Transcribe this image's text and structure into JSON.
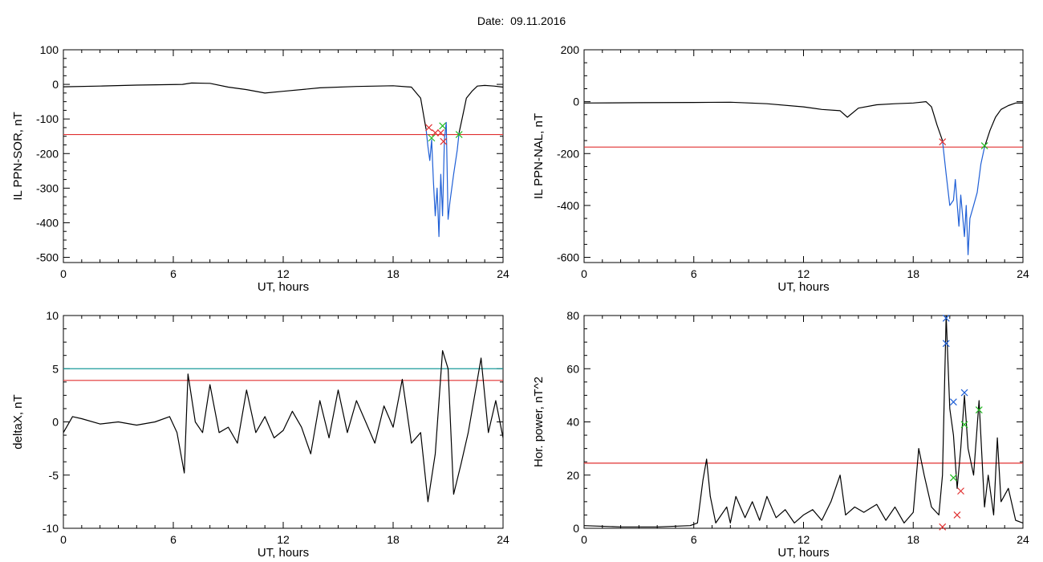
{
  "header": {
    "date_label": "Date:",
    "date_value": "09.11.2016"
  },
  "chart_data": [
    {
      "id": "sor",
      "type": "line",
      "xlabel": "UT, hours",
      "ylabel": "IL PPN-SOR, nT",
      "xlim": [
        0,
        24
      ],
      "ylim": [
        -515,
        100
      ],
      "xticks": [
        0,
        6,
        12,
        18,
        24
      ],
      "yticks": [
        100,
        0,
        -100,
        -200,
        -300,
        -400,
        -500
      ],
      "thresholds": [
        {
          "value": -145,
          "color": "#e03030"
        }
      ],
      "series": [
        {
          "color": "#000000",
          "points": [
            [
              0,
              -7
            ],
            [
              2,
              -5
            ],
            [
              4,
              -2
            ],
            [
              6.5,
              0
            ],
            [
              7,
              4
            ],
            [
              8,
              3
            ],
            [
              9,
              -8
            ],
            [
              10,
              -15
            ],
            [
              11,
              -25
            ],
            [
              12,
              -20
            ],
            [
              14,
              -10
            ],
            [
              16,
              -6
            ],
            [
              18,
              -4
            ],
            [
              19,
              -8
            ],
            [
              19.5,
              -40
            ],
            [
              19.7,
              -100
            ],
            [
              19.8,
              -130
            ]
          ]
        },
        {
          "color": "#1f5fd6",
          "points": [
            [
              19.8,
              -130
            ],
            [
              19.9,
              -180
            ],
            [
              20.0,
              -220
            ],
            [
              20.1,
              -160
            ],
            [
              20.2,
              -280
            ],
            [
              20.3,
              -380
            ],
            [
              20.4,
              -300
            ],
            [
              20.5,
              -440
            ],
            [
              20.6,
              -260
            ],
            [
              20.7,
              -380
            ],
            [
              20.8,
              -160
            ],
            [
              20.9,
              -110
            ],
            [
              21.0,
              -390
            ],
            [
              21.1,
              -340
            ],
            [
              21.3,
              -260
            ],
            [
              21.5,
              -190
            ],
            [
              21.6,
              -140
            ]
          ]
        },
        {
          "color": "#000000",
          "points": [
            [
              21.6,
              -140
            ],
            [
              21.8,
              -90
            ],
            [
              22.0,
              -40
            ],
            [
              22.3,
              -20
            ],
            [
              22.6,
              -5
            ],
            [
              23.0,
              -3
            ],
            [
              23.5,
              -5
            ],
            [
              24,
              -8
            ]
          ]
        }
      ],
      "markers": [
        {
          "color": "#e03030",
          "points": [
            [
              19.95,
              -125
            ],
            [
              20.3,
              -140
            ],
            [
              20.6,
              -140
            ],
            [
              20.75,
              -165
            ]
          ]
        },
        {
          "color": "#22bb22",
          "points": [
            [
              20.1,
              -155
            ],
            [
              20.7,
              -120
            ],
            [
              21.6,
              -145
            ]
          ]
        }
      ]
    },
    {
      "id": "nal",
      "type": "line",
      "xlabel": "UT, hours",
      "ylabel": "IL PPN-NAL, nT",
      "xlim": [
        0,
        24
      ],
      "ylim": [
        -620,
        200
      ],
      "xticks": [
        0,
        6,
        12,
        18,
        24
      ],
      "yticks": [
        200,
        0,
        -200,
        -400,
        -600
      ],
      "thresholds": [
        {
          "value": -175,
          "color": "#e03030"
        }
      ],
      "series": [
        {
          "color": "#000000",
          "points": [
            [
              0,
              -5
            ],
            [
              3,
              -4
            ],
            [
              6,
              -3
            ],
            [
              8,
              -2
            ],
            [
              10,
              -8
            ],
            [
              12,
              -20
            ],
            [
              13,
              -30
            ],
            [
              14,
              -35
            ],
            [
              14.4,
              -60
            ],
            [
              15,
              -25
            ],
            [
              16,
              -12
            ],
            [
              17,
              -8
            ],
            [
              18,
              -5
            ],
            [
              18.7,
              0
            ],
            [
              19,
              -20
            ],
            [
              19.3,
              -90
            ],
            [
              19.6,
              -150
            ]
          ]
        },
        {
          "color": "#1f5fd6",
          "points": [
            [
              19.6,
              -150
            ],
            [
              19.8,
              -280
            ],
            [
              20.0,
              -400
            ],
            [
              20.2,
              -380
            ],
            [
              20.3,
              -300
            ],
            [
              20.5,
              -480
            ],
            [
              20.6,
              -360
            ],
            [
              20.8,
              -520
            ],
            [
              20.9,
              -400
            ],
            [
              21.0,
              -590
            ],
            [
              21.1,
              -450
            ],
            [
              21.3,
              -400
            ],
            [
              21.5,
              -350
            ],
            [
              21.7,
              -240
            ],
            [
              21.9,
              -175
            ]
          ]
        },
        {
          "color": "#000000",
          "points": [
            [
              21.9,
              -175
            ],
            [
              22.2,
              -110
            ],
            [
              22.5,
              -60
            ],
            [
              22.8,
              -30
            ],
            [
              23.2,
              -15
            ],
            [
              23.6,
              -5
            ],
            [
              24,
              -5
            ]
          ]
        }
      ],
      "markers": [
        {
          "color": "#e03030",
          "points": [
            [
              19.6,
              -155
            ]
          ]
        },
        {
          "color": "#22bb22",
          "points": [
            [
              21.9,
              -170
            ]
          ]
        }
      ]
    },
    {
      "id": "deltax",
      "type": "line",
      "xlabel": "UT, hours",
      "ylabel": "deltaX, nT",
      "xlim": [
        0,
        24
      ],
      "ylim": [
        -10,
        10
      ],
      "xticks": [
        0,
        6,
        12,
        18,
        24
      ],
      "yticks": [
        10,
        5,
        0,
        -5,
        -10
      ],
      "ytick_labels": [
        "10",
        "5",
        "0",
        "-5",
        "-10"
      ],
      "thresholds": [
        {
          "value": 5,
          "color": "#1a9a9a"
        },
        {
          "value": 3.9,
          "color": "#e03030"
        }
      ],
      "series": [
        {
          "color": "#000000",
          "points": [
            [
              0,
              -1
            ],
            [
              0.5,
              0.5
            ],
            [
              1,
              0.3
            ],
            [
              2,
              -0.2
            ],
            [
              3,
              0
            ],
            [
              4,
              -0.3
            ],
            [
              5,
              0
            ],
            [
              5.8,
              0.5
            ],
            [
              6.2,
              -1
            ],
            [
              6.6,
              -4.8
            ],
            [
              6.8,
              4.5
            ],
            [
              7.2,
              0
            ],
            [
              7.6,
              -1
            ],
            [
              8,
              3.5
            ],
            [
              8.5,
              -1
            ],
            [
              9,
              -0.5
            ],
            [
              9.5,
              -2
            ],
            [
              10,
              3
            ],
            [
              10.5,
              -1
            ],
            [
              11,
              0.5
            ],
            [
              11.5,
              -1.5
            ],
            [
              12,
              -0.8
            ],
            [
              12.5,
              1
            ],
            [
              13,
              -0.5
            ],
            [
              13.5,
              -3
            ],
            [
              14,
              2
            ],
            [
              14.5,
              -1.5
            ],
            [
              15,
              3
            ],
            [
              15.5,
              -1
            ],
            [
              16,
              2
            ],
            [
              16.5,
              0
            ],
            [
              17,
              -2
            ],
            [
              17.5,
              1.5
            ],
            [
              18,
              -0.5
            ],
            [
              18.5,
              4
            ],
            [
              19,
              -2
            ],
            [
              19.5,
              -1
            ],
            [
              19.9,
              -7.5
            ],
            [
              20.3,
              -3
            ],
            [
              20.7,
              6.7
            ],
            [
              21.0,
              5
            ],
            [
              21.3,
              -6.8
            ],
            [
              21.7,
              -4
            ],
            [
              22.1,
              -1
            ],
            [
              22.5,
              3
            ],
            [
              22.8,
              6
            ],
            [
              23.2,
              -1
            ],
            [
              23.6,
              2
            ],
            [
              24,
              -1.5
            ]
          ]
        }
      ],
      "markers": []
    },
    {
      "id": "power",
      "type": "line",
      "xlabel": "UT, hours",
      "ylabel": "Hor. power, nT^2",
      "xlim": [
        0,
        24
      ],
      "ylim": [
        0,
        80
      ],
      "xticks": [
        0,
        6,
        12,
        18,
        24
      ],
      "yticks": [
        80,
        60,
        40,
        20,
        0
      ],
      "thresholds": [
        {
          "value": 24.5,
          "color": "#e03030"
        }
      ],
      "series": [
        {
          "color": "#000000",
          "points": [
            [
              0,
              1
            ],
            [
              2,
              0.5
            ],
            [
              4,
              0.5
            ],
            [
              5.8,
              1
            ],
            [
              6.2,
              2
            ],
            [
              6.5,
              18
            ],
            [
              6.7,
              26
            ],
            [
              6.9,
              12
            ],
            [
              7.2,
              2
            ],
            [
              7.8,
              8
            ],
            [
              8,
              2
            ],
            [
              8.3,
              12
            ],
            [
              8.8,
              4
            ],
            [
              9.2,
              10
            ],
            [
              9.6,
              3
            ],
            [
              10,
              12
            ],
            [
              10.5,
              4
            ],
            [
              11,
              7
            ],
            [
              11.5,
              2
            ],
            [
              12,
              5
            ],
            [
              12.5,
              7
            ],
            [
              13,
              3
            ],
            [
              13.5,
              10
            ],
            [
              14,
              20
            ],
            [
              14.3,
              5
            ],
            [
              14.8,
              8
            ],
            [
              15.3,
              6
            ],
            [
              16,
              9
            ],
            [
              16.5,
              3
            ],
            [
              17,
              8
            ],
            [
              17.5,
              2
            ],
            [
              18,
              6
            ],
            [
              18.3,
              30
            ],
            [
              18.6,
              20
            ],
            [
              19,
              8
            ],
            [
              19.4,
              5
            ],
            [
              19.6,
              20
            ],
            [
              19.8,
              80
            ],
            [
              20.0,
              45
            ],
            [
              20.2,
              35
            ],
            [
              20.4,
              15
            ],
            [
              20.6,
              30
            ],
            [
              20.8,
              50
            ],
            [
              21.0,
              30
            ],
            [
              21.3,
              20
            ],
            [
              21.6,
              48
            ],
            [
              21.9,
              8
            ],
            [
              22.1,
              20
            ],
            [
              22.4,
              5
            ],
            [
              22.6,
              34
            ],
            [
              22.8,
              10
            ],
            [
              23.2,
              15
            ],
            [
              23.6,
              3
            ],
            [
              24,
              2
            ]
          ]
        }
      ],
      "markers": [
        {
          "color": "#1f5fd6",
          "points": [
            [
              19.8,
              79
            ],
            [
              19.8,
              69.5
            ],
            [
              20.2,
              47.5
            ],
            [
              20.8,
              51
            ]
          ]
        },
        {
          "color": "#22bb22",
          "points": [
            [
              20.2,
              19
            ],
            [
              20.8,
              39
            ],
            [
              21.6,
              44.5
            ]
          ]
        },
        {
          "color": "#e03030",
          "points": [
            [
              19.6,
              0.5
            ],
            [
              20.4,
              5
            ],
            [
              20.6,
              14
            ]
          ]
        }
      ]
    }
  ]
}
